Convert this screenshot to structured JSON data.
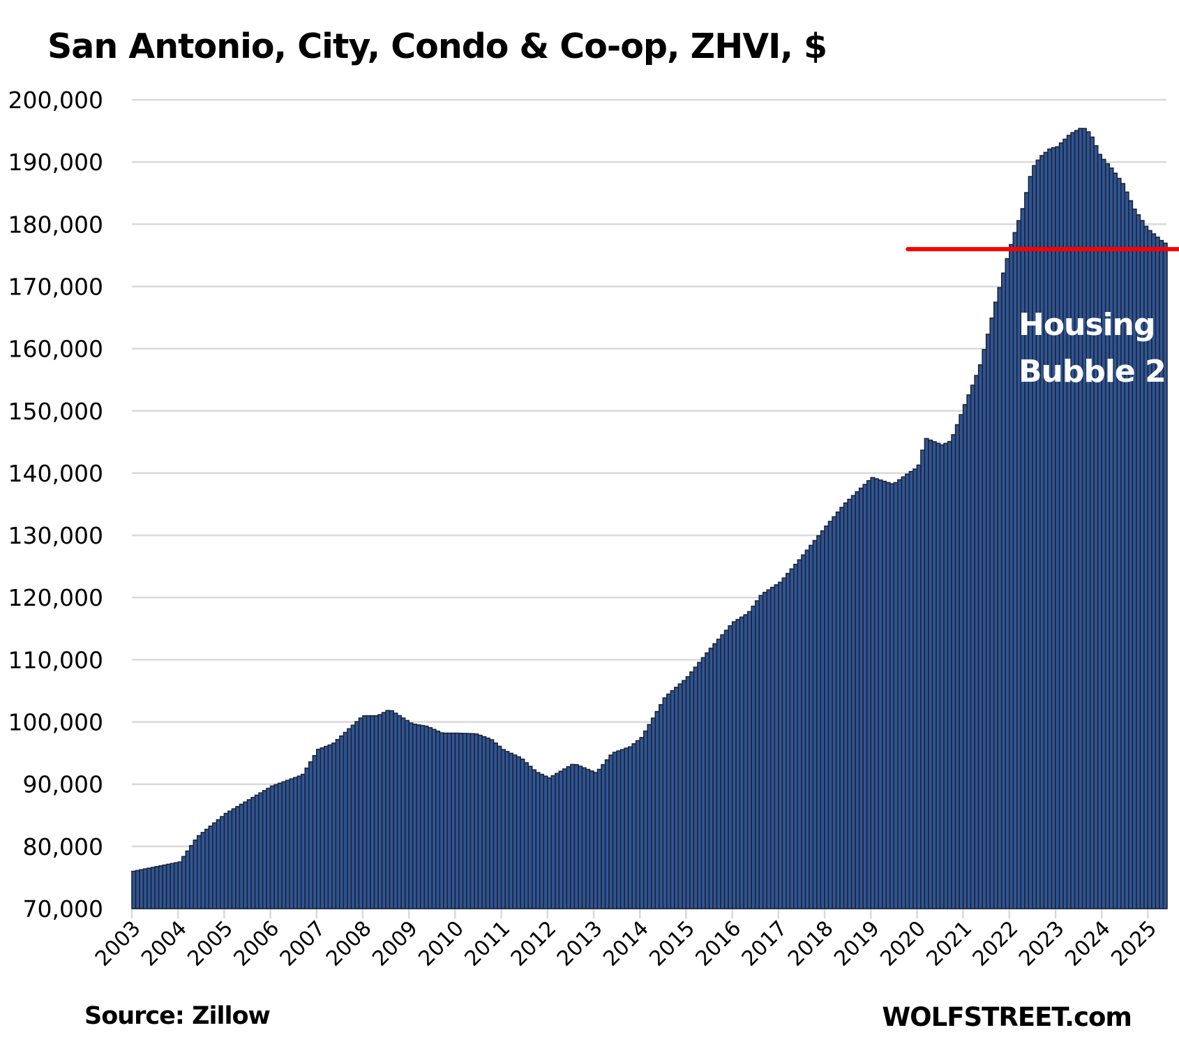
{
  "chart_data": {
    "type": "bar",
    "title": "San Antonio, City, Condo & Co-op, ZHVI, $",
    "xlabel": "",
    "ylabel": "",
    "frequency": "monthly",
    "x_range": [
      2003.0,
      2025.42
    ],
    "ylim": [
      70000,
      200000
    ],
    "yticks": [
      "70,000",
      "80,000",
      "90,000",
      "100,000",
      "110,000",
      "120,000",
      "130,000",
      "140,000",
      "150,000",
      "160,000",
      "170,000",
      "180,000",
      "190,000",
      "200,000"
    ],
    "xticks": [
      "2003",
      "2004",
      "2005",
      "2006",
      "2007",
      "2008",
      "2009",
      "2010",
      "2011",
      "2012",
      "2013",
      "2014",
      "2015",
      "2016",
      "2017",
      "2018",
      "2019",
      "2020",
      "2021",
      "2022",
      "2023",
      "2024",
      "2025"
    ],
    "grid": true,
    "series": [
      {
        "name": "ZHVI",
        "color": "#2f5597",
        "edge_color": "#1c2433",
        "x": [
          2003.0,
          2004.0,
          2004.38,
          2005.0,
          2006.0,
          2006.66,
          2007.0,
          2007.32,
          2007.97,
          2008.29,
          2008.54,
          2009.03,
          2009.35,
          2009.68,
          2010.0,
          2010.41,
          2010.74,
          2011.01,
          2011.39,
          2011.71,
          2012.0,
          2012.53,
          2013.02,
          2013.37,
          2013.75,
          2014.0,
          2014.32,
          2014.51,
          2014.97,
          2015.46,
          2015.98,
          2016.31,
          2016.6,
          2017.01,
          2017.41,
          2017.98,
          2018.39,
          2018.99,
          2019.45,
          2019.78,
          2019.99,
          2020.15,
          2020.51,
          2020.7,
          2021.0,
          2021.32,
          2021.49,
          2021.65,
          2021.81,
          2021.99,
          2022.25,
          2022.46,
          2022.63,
          2022.87,
          2022.98,
          2023.28,
          2023.55,
          2023.72,
          2023.93,
          2024.17,
          2024.42,
          2024.66,
          2024.95,
          2025.31,
          2025.42
        ],
        "values": [
          76000,
          77500,
          81500,
          85300,
          89700,
          91500,
          95600,
          96500,
          101000,
          101000,
          102000,
          99700,
          99300,
          98200,
          98200,
          98100,
          97200,
          95500,
          94200,
          92000,
          91000,
          93300,
          91800,
          95000,
          96000,
          97500,
          101500,
          104000,
          107000,
          111500,
          116000,
          117500,
          120500,
          122500,
          126000,
          131300,
          135000,
          139300,
          138200,
          140000,
          141000,
          145600,
          144500,
          145200,
          151000,
          157000,
          162000,
          167000,
          171500,
          176500,
          182500,
          189000,
          190800,
          192300,
          192300,
          194500,
          195600,
          194500,
          191000,
          189000,
          186500,
          182500,
          179300,
          177000,
          176800
        ]
      }
    ],
    "reference_line": {
      "value": 176000,
      "color": "#ff0000",
      "from_x": 2019.8
    },
    "annotations": [
      "Housing",
      "Bubble 2"
    ]
  },
  "footer": {
    "source": "Source: Zillow",
    "brand": "WOLFSTREET.com"
  }
}
